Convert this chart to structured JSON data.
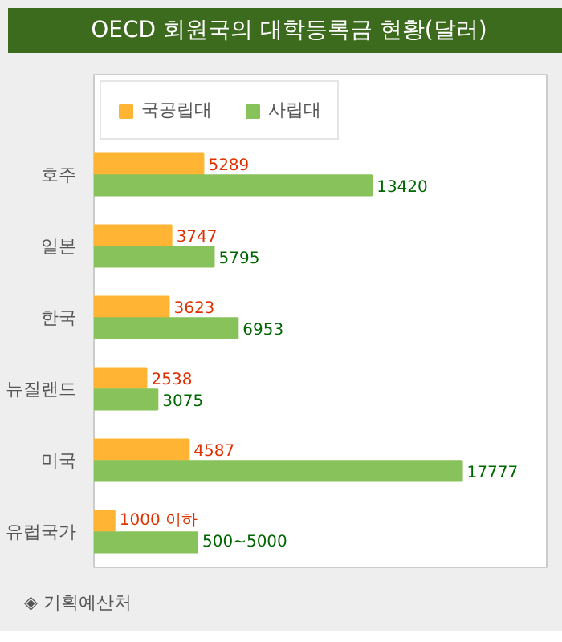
{
  "chart_data": {
    "type": "bar",
    "orientation": "horizontal",
    "title": "OECD 회원국의 대학등록금 현황(달러)",
    "categories": [
      "호주",
      "일본",
      "한국",
      "뉴질랜드",
      "미국",
      "유럽국가"
    ],
    "series": [
      {
        "name": "국공립대",
        "color": "#ffb533",
        "values": [
          5289,
          3747,
          3623,
          2538,
          4587,
          1000
        ],
        "value_labels": [
          "5289",
          "3747",
          "3623",
          "2538",
          "4587",
          "1000 이하"
        ]
      },
      {
        "name": "사립대",
        "color": "#88c25a",
        "values": [
          13420,
          5795,
          6953,
          3075,
          17777,
          5000
        ],
        "value_labels": [
          "13420",
          "5795",
          "6953",
          "3075",
          "17777",
          "500~5000"
        ]
      }
    ],
    "legend": "top left",
    "grid": false,
    "annotations": [
      "◈ 기획예산처"
    ]
  }
}
